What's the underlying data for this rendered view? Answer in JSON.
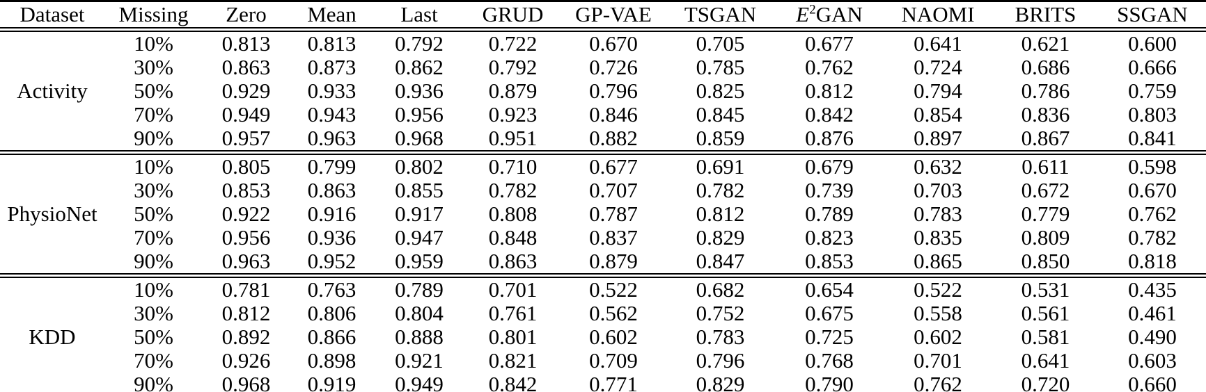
{
  "table": {
    "colors": {
      "text": "#000000",
      "background": "#ffffff",
      "rule": "#000000"
    },
    "columns": [
      {
        "key": "dataset",
        "label": "Dataset"
      },
      {
        "key": "missing",
        "label": "Missing"
      },
      {
        "key": "zero",
        "label": "Zero"
      },
      {
        "key": "mean",
        "label": "Mean"
      },
      {
        "key": "last",
        "label": "Last"
      },
      {
        "key": "grud",
        "label": "GRUD"
      },
      {
        "key": "gpvae",
        "label": "GP-VAE"
      },
      {
        "key": "tsgan",
        "label": "TSGAN"
      },
      {
        "key": "e2gan",
        "label": "E2GAN",
        "label_parts": {
          "base": "E",
          "sup": "2",
          "rest": "GAN"
        }
      },
      {
        "key": "naomi",
        "label": "NAOMI"
      },
      {
        "key": "brits",
        "label": "BRITS"
      },
      {
        "key": "ssgan",
        "label": "SSGAN",
        "bold": true
      }
    ],
    "sections": [
      {
        "dataset": "Activity",
        "rows": [
          {
            "missing": "10%",
            "values": [
              "0.813",
              "0.813",
              "0.792",
              "0.722",
              "0.670",
              "0.705",
              "0.677",
              "0.641",
              "0.621",
              "0.600"
            ]
          },
          {
            "missing": "30%",
            "values": [
              "0.863",
              "0.873",
              "0.862",
              "0.792",
              "0.726",
              "0.785",
              "0.762",
              "0.724",
              "0.686",
              "0.666"
            ]
          },
          {
            "missing": "50%",
            "values": [
              "0.929",
              "0.933",
              "0.936",
              "0.879",
              "0.796",
              "0.825",
              "0.812",
              "0.794",
              "0.786",
              "0.759"
            ]
          },
          {
            "missing": "70%",
            "values": [
              "0.949",
              "0.943",
              "0.956",
              "0.923",
              "0.846",
              "0.845",
              "0.842",
              "0.854",
              "0.836",
              "0.803"
            ]
          },
          {
            "missing": "90%",
            "values": [
              "0.957",
              "0.963",
              "0.968",
              "0.951",
              "0.882",
              "0.859",
              "0.876",
              "0.897",
              "0.867",
              "0.841"
            ]
          }
        ]
      },
      {
        "dataset": "PhysioNet",
        "rows": [
          {
            "missing": "10%",
            "values": [
              "0.805",
              "0.799",
              "0.802",
              "0.710",
              "0.677",
              "0.691",
              "0.679",
              "0.632",
              "0.611",
              "0.598"
            ]
          },
          {
            "missing": "30%",
            "values": [
              "0.853",
              "0.863",
              "0.855",
              "0.782",
              "0.707",
              "0.782",
              "0.739",
              "0.703",
              "0.672",
              "0.670"
            ]
          },
          {
            "missing": "50%",
            "values": [
              "0.922",
              "0.916",
              "0.917",
              "0.808",
              "0.787",
              "0.812",
              "0.789",
              "0.783",
              "0.779",
              "0.762"
            ]
          },
          {
            "missing": "70%",
            "values": [
              "0.956",
              "0.936",
              "0.947",
              "0.848",
              "0.837",
              "0.829",
              "0.823",
              "0.835",
              "0.809",
              "0.782"
            ]
          },
          {
            "missing": "90%",
            "values": [
              "0.963",
              "0.952",
              "0.959",
              "0.863",
              "0.879",
              "0.847",
              "0.853",
              "0.865",
              "0.850",
              "0.818"
            ]
          }
        ]
      },
      {
        "dataset": "KDD",
        "rows": [
          {
            "missing": "10%",
            "values": [
              "0.781",
              "0.763",
              "0.789",
              "0.701",
              "0.522",
              "0.682",
              "0.654",
              "0.522",
              "0.531",
              "0.435"
            ]
          },
          {
            "missing": "30%",
            "values": [
              "0.812",
              "0.806",
              "0.804",
              "0.761",
              "0.562",
              "0.752",
              "0.675",
              "0.558",
              "0.561",
              "0.461"
            ]
          },
          {
            "missing": "50%",
            "values": [
              "0.892",
              "0.866",
              "0.888",
              "0.801",
              "0.602",
              "0.783",
              "0.725",
              "0.602",
              "0.581",
              "0.490"
            ]
          },
          {
            "missing": "70%",
            "values": [
              "0.926",
              "0.898",
              "0.921",
              "0.821",
              "0.709",
              "0.796",
              "0.768",
              "0.701",
              "0.641",
              "0.603"
            ]
          },
          {
            "missing": "90%",
            "values": [
              "0.968",
              "0.919",
              "0.949",
              "0.842",
              "0.771",
              "0.829",
              "0.790",
              "0.762",
              "0.720",
              "0.660"
            ]
          }
        ]
      }
    ]
  }
}
